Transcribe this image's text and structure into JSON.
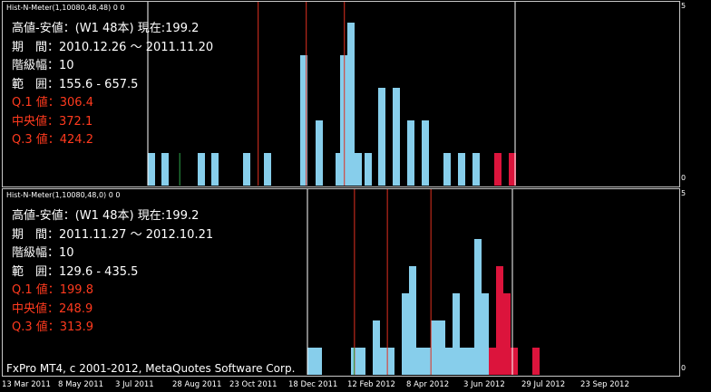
{
  "pane1": {
    "indicator_label": "Hist-N-Meter(1,10080,48,48) 0 0",
    "info": {
      "line1": "高値-安値：(W1 48本) 現在:199.2",
      "line2": "期　間：2010.12.26 ～ 2011.11.20",
      "line3": "階級幅：10",
      "line4": "範　囲：155.6 - 657.5",
      "q1": "Q.1 値：306.4",
      "median": "中央値：372.1",
      "q3": "Q.3 値：424.2"
    },
    "scale_top": "5",
    "scale_bottom": "0"
  },
  "pane2": {
    "indicator_label": "Hist-N-Meter(1,10080,48,0) 0 0",
    "info": {
      "line1": "高値-安値：(W1 48本) 現在:199.2",
      "line2": "期　間：2011.11.27 ～ 2012.10.21",
      "line3": "階級幅：10",
      "line4": "範　囲：129.6 - 435.5",
      "q1": "Q.1 値：199.8",
      "median": "中央値：248.9",
      "q3": "Q.3 値：313.9"
    },
    "scale_top": "5",
    "scale_bottom": "0"
  },
  "copyright": "FxPro MT4, c 2001-2012, MetaQuotes Software Corp.",
  "x_axis_labels": [
    "13 Mar 2011",
    "8 May 2011",
    "3 Jul 2011",
    "28 Aug 2011",
    "23 Oct 2011",
    "18 Dec 2011",
    "12 Feb 2012",
    "8 Apr 2012",
    "3 Jun 2012",
    "29 Jul 2012",
    "23 Sep 2012"
  ],
  "colors": {
    "background": "#000000",
    "bar": "#87ceeb",
    "bar_current": "#dc143c",
    "quartile_line": "#e03020",
    "boundary_line": "#ffffff",
    "current_line": "#2ea84a"
  },
  "chart_data": [
    {
      "type": "bar",
      "panel": "upper",
      "y_max": 5,
      "bins_light": [
        [
          160,
          1
        ],
        [
          175,
          1
        ],
        [
          215,
          1
        ],
        [
          230,
          1
        ],
        [
          265,
          1
        ],
        [
          288,
          1
        ],
        [
          328,
          4
        ],
        [
          345,
          2
        ],
        [
          367,
          1
        ],
        [
          372,
          4
        ],
        [
          380,
          5
        ],
        [
          388,
          1
        ],
        [
          399,
          1
        ],
        [
          414,
          3
        ],
        [
          430,
          3
        ],
        [
          446,
          2
        ],
        [
          462,
          2
        ],
        [
          486,
          1
        ],
        [
          502,
          1
        ],
        [
          518,
          1
        ]
      ],
      "bins_red": [
        [
          542,
          1
        ],
        [
          558,
          1
        ]
      ],
      "quartile_lines": [
        306.4,
        372.1,
        424.2
      ],
      "boundaries": [
        155.6,
        657.5
      ],
      "current": 199.2
    },
    {
      "type": "bar",
      "panel": "lower",
      "y_max": 5,
      "bins_light": [
        [
          336,
          1
        ],
        [
          344,
          1
        ],
        [
          384,
          1
        ],
        [
          392,
          1
        ],
        [
          408,
          2
        ],
        [
          416,
          1
        ],
        [
          424,
          1
        ],
        [
          440,
          3
        ],
        [
          448,
          4
        ],
        [
          456,
          1
        ],
        [
          464,
          1
        ],
        [
          472,
          2
        ],
        [
          480,
          2
        ],
        [
          488,
          1
        ],
        [
          496,
          3
        ],
        [
          504,
          1
        ],
        [
          512,
          1
        ],
        [
          520,
          5
        ],
        [
          528,
          3
        ]
      ],
      "bins_red": [
        [
          536,
          1
        ],
        [
          544,
          4
        ],
        [
          552,
          3
        ],
        [
          560,
          1
        ],
        [
          584,
          1
        ]
      ],
      "quartile_lines": [
        199.8,
        248.9,
        313.9
      ],
      "boundaries": [
        129.6,
        435.5
      ],
      "current": 199.2
    }
  ]
}
